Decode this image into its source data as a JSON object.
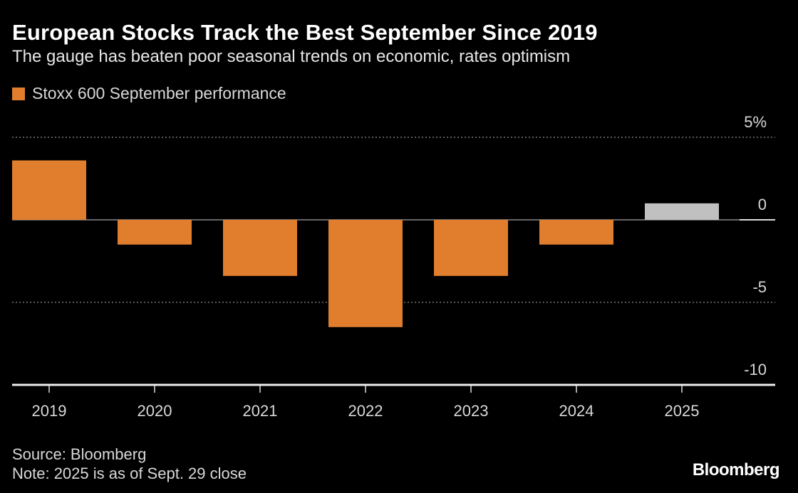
{
  "title": "European Stocks Track the Best September Since 2019",
  "subtitle": "The gauge has beaten poor seasonal trends on economic, rates optimism",
  "chart_data": {
    "type": "bar",
    "categories": [
      "2019",
      "2020",
      "2021",
      "2022",
      "2023",
      "2024",
      "2025"
    ],
    "series": [
      {
        "name": "Stoxx 600 September performance",
        "values": [
          3.6,
          -1.5,
          -3.4,
          -6.5,
          -3.4,
          -1.5,
          1.0
        ],
        "color": "#e07e2d"
      }
    ],
    "highlight": {
      "category": "2025",
      "color": "#c0c0c0"
    },
    "ylim": [
      -10,
      5
    ],
    "yticks": [
      5,
      0,
      -5,
      -10
    ],
    "ytick_labels": [
      "5%",
      "0",
      "-5",
      "-10"
    ],
    "grid": true,
    "legend": "top-left"
  },
  "footer": {
    "source": "Source: Bloomberg",
    "note": "Note: 2025 is as of Sept. 29 close"
  },
  "logo": "Bloomberg"
}
